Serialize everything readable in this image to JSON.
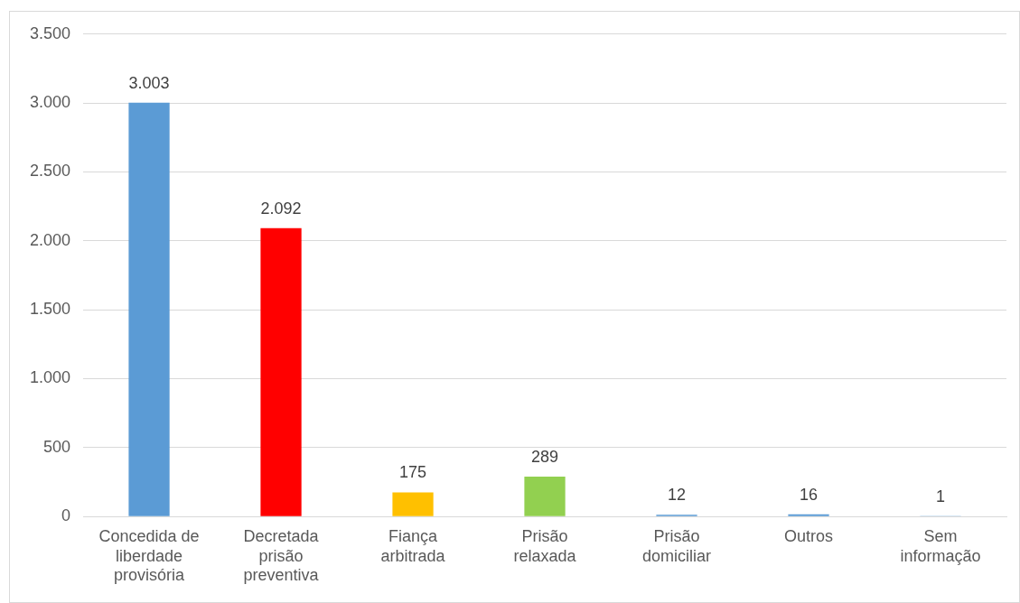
{
  "chart_data": {
    "type": "bar",
    "categories": [
      "Concedida de liberdade provisória",
      "Decretada prisão preventiva",
      "Fiança arbitrada",
      "Prisão relaxada",
      "Prisão domiciliar",
      "Outros",
      "Sem informação"
    ],
    "values": [
      3003,
      2092,
      175,
      289,
      12,
      16,
      1
    ],
    "colors": [
      "#5b9bd5",
      "#ff0000",
      "#ffc000",
      "#92d050",
      "#5b9bd5",
      "#5b9bd5",
      "#5b9bd5"
    ],
    "value_labels": [
      "3.003",
      "2.092",
      "175",
      "289",
      "12",
      "16",
      "1"
    ],
    "ylim": [
      0,
      3500
    ],
    "yticks": [
      0,
      {
        "value": 500,
        "label": "500"
      },
      {
        "value": 1000,
        "label": "1.000"
      },
      {
        "value": 1500,
        "label": "1.500"
      },
      {
        "value": 2000,
        "label": "2.000"
      },
      {
        "value": 2500,
        "label": "2.500"
      },
      {
        "value": 3000,
        "label": "3.000"
      },
      {
        "value": 3500,
        "label": "3.500"
      }
    ],
    "grid": "y",
    "legend": false
  }
}
